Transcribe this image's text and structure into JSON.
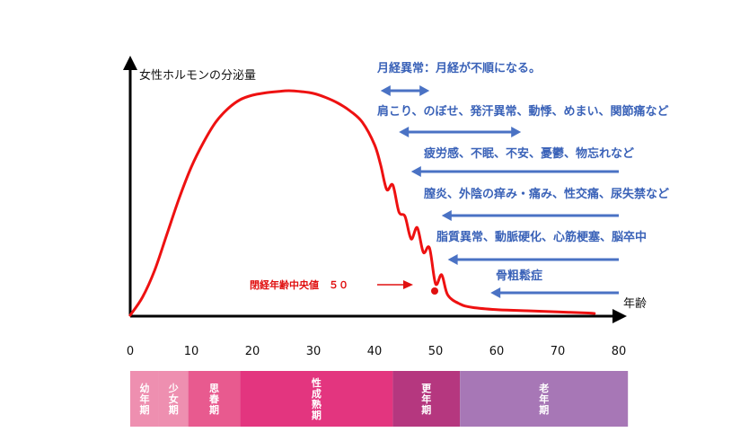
{
  "chart_data": {
    "type": "line",
    "ylabel": "女性ホルモンの分泌量",
    "xlabel": "年齢",
    "xlim": [
      0,
      80
    ],
    "xticks": [
      "0",
      "10",
      "20",
      "30",
      "40",
      "50",
      "60",
      "70",
      "80"
    ],
    "series": [
      {
        "x": [
          0,
          2,
          4,
          6,
          8,
          10,
          12,
          14,
          16,
          18,
          20,
          22,
          24,
          26,
          28,
          30,
          32,
          34,
          36,
          38,
          40,
          41,
          42,
          43,
          44,
          45,
          46,
          47,
          48,
          49,
          50,
          51,
          52,
          54,
          56,
          60,
          65,
          70,
          75,
          76
        ],
        "values": [
          0,
          8,
          20,
          36,
          52,
          66,
          77,
          86,
          92,
          96,
          98,
          99,
          99.6,
          100,
          99.6,
          98.8,
          97,
          94.5,
          91,
          86,
          76,
          67,
          56,
          58,
          46,
          44,
          34,
          39,
          28,
          30,
          14,
          18,
          9,
          5,
          3.5,
          2.5,
          2,
          1.5,
          1,
          0.8
        ]
      }
    ],
    "color": "#ee1111",
    "menopause": {
      "label": "閉経年齢中央値　５０",
      "x": 50,
      "y": 14
    }
  },
  "symptoms": [
    {
      "text": "月経異常：月経が不順になる。",
      "from_age": 41,
      "to_age": 49,
      "direction": "both"
    },
    {
      "text": "肩こり、のぼせ、発汗異常、動悸、めまい、関節痛など",
      "from_age": 44,
      "to_age": 64,
      "direction": "both"
    },
    {
      "text": "疲労感、不眠、不安、憂鬱、物忘れなど",
      "from_age": 46,
      "to_age": 80,
      "direction": "left"
    },
    {
      "text": "膣炎、外陰の痒み・痛み、性交痛、尿失禁など",
      "from_age": 51,
      "to_age": 80,
      "direction": "left"
    },
    {
      "text": "脂質異常、動脈硬化、心筋梗塞、脳卒中",
      "from_age": 52,
      "to_age": 80,
      "direction": "left"
    },
    {
      "text": "骨粗鬆症",
      "from_age": 59,
      "to_age": 80,
      "direction": "left"
    }
  ],
  "arrow_color": "#4a72c4",
  "life_stages": [
    {
      "labels": [
        "幼年期"
      ],
      "from_age": 0,
      "to_age": 4.7,
      "color": "#ee8fb0"
    },
    {
      "labels": [
        "少女期"
      ],
      "from_age": 4.7,
      "to_age": 9.5,
      "color": "#ee8fb0"
    },
    {
      "labels": [
        "思春期"
      ],
      "from_age": 9.5,
      "to_age": 18,
      "color": "#e85a8f"
    },
    {
      "labels": [
        "性成熟期"
      ],
      "from_age": 18,
      "to_age": 43,
      "color": "#e3357f"
    },
    {
      "labels": [
        "更年期"
      ],
      "from_age": 43,
      "to_age": 54,
      "color": "#b5377f"
    },
    {
      "labels": [
        "老年期"
      ],
      "from_age": 54,
      "to_age": 81.5,
      "color": "#a777b6"
    }
  ]
}
